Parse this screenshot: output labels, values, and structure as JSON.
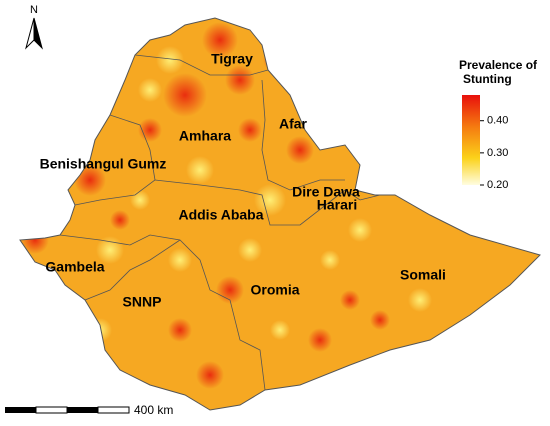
{
  "north": "N",
  "regions": [
    "Tigray",
    "Afar",
    "Amhara",
    "Benishangul Gumz",
    "Dire Dawa",
    "Harari",
    "Addis Ababa",
    "Gambela",
    "Somali",
    "Oromia",
    "SNNP"
  ],
  "legend": {
    "title_lines": [
      "Prevalence of",
      "Stunting"
    ],
    "lim": [
      0.2,
      0.48
    ],
    "ticks": [
      {
        "value": 0.4,
        "label": "0.40"
      },
      {
        "value": 0.3,
        "label": "0.30"
      },
      {
        "value": 0.2,
        "label": "0.20"
      }
    ]
  },
  "scale_bar": "400 km"
}
